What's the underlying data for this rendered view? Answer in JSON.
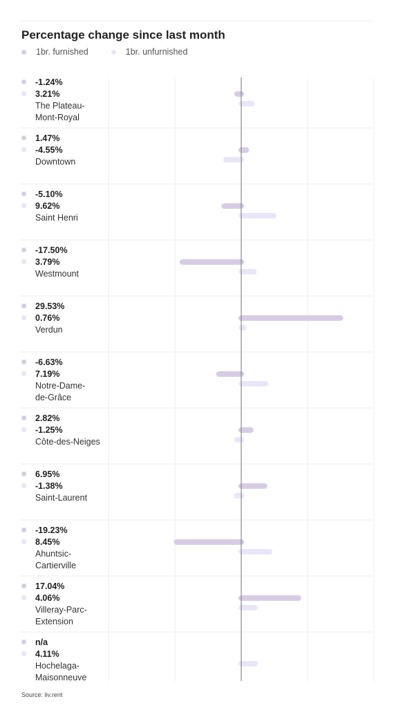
{
  "title": "Percentage change since last month",
  "source": "Source: liv.rent",
  "colors": {
    "furnished": "#d6cce6",
    "unfurnished": "#e9e5f9",
    "gridline": "#eeeeee",
    "zeroline": "#8a8a8a"
  },
  "legend": [
    {
      "label": "1br. furnished",
      "series": "furnished"
    },
    {
      "label": "1br. unfurnished",
      "series": "unfurnished"
    }
  ],
  "chart_data": {
    "type": "bar",
    "orientation": "horizontal",
    "title": "Percentage change since last month",
    "categories": [
      "The Plateau-Mont-Royal",
      "Downtown",
      "Saint Henri",
      "Westmount",
      "Verdun",
      "Notre-Dame-de-Grâce",
      "Côte-des-Neiges",
      "Saint-Laurent",
      "Ahuntsic-Cartierville",
      "Villeray-Parc-Extension",
      "Hochelaga-Maisonneuve"
    ],
    "category_labels": [
      [
        "The Plateau-",
        "Mont-Royal"
      ],
      [
        "Downtown"
      ],
      [
        "Saint Henri"
      ],
      [
        "Westmount"
      ],
      [
        "Verdun"
      ],
      [
        "Notre-Dame-",
        "de-Grâce"
      ],
      [
        "Côte-des-Neiges"
      ],
      [
        "Saint-Laurent"
      ],
      [
        "Ahuntsic-",
        "Cartierville"
      ],
      [
        "Villeray-Parc-",
        "Extension"
      ],
      [
        "Hochelaga-",
        "Maisonneuve"
      ]
    ],
    "series": [
      {
        "name": "1br. furnished",
        "key": "furnished",
        "values": [
          -1.24,
          1.47,
          -5.1,
          -17.5,
          29.53,
          -6.63,
          2.82,
          6.95,
          -19.23,
          17.04,
          null
        ],
        "labels": [
          "-1.24%",
          "1.47%",
          "-5.10%",
          "-17.50%",
          "29.53%",
          "-6.63%",
          "2.82%",
          "6.95%",
          "-19.23%",
          "17.04%",
          "n/a"
        ]
      },
      {
        "name": "1br. unfurnished",
        "key": "unfurnished",
        "values": [
          3.21,
          -4.55,
          9.62,
          3.79,
          0.76,
          7.19,
          -1.25,
          -1.38,
          8.45,
          4.06,
          4.11
        ],
        "labels": [
          "3.21%",
          "-4.55%",
          "9.62%",
          "3.79%",
          "0.76%",
          "7.19%",
          "-1.25%",
          "-1.38%",
          "8.45%",
          "4.06%",
          "4.11%"
        ]
      }
    ],
    "xlim": [
      -20,
      40
    ],
    "grid": true,
    "legend_position": "top-left"
  }
}
